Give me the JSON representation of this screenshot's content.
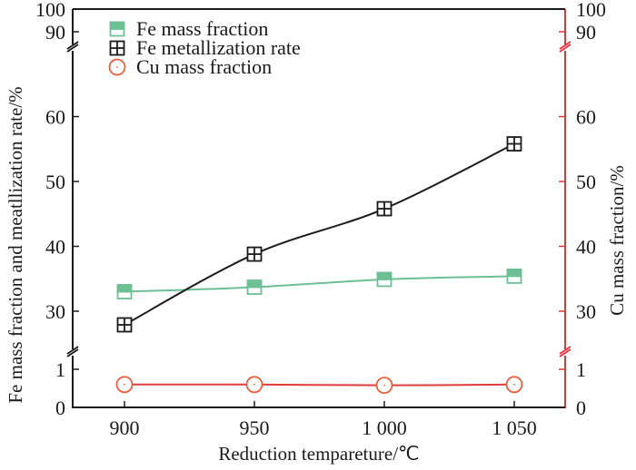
{
  "chart_data": {
    "type": "line",
    "title": "",
    "xlabel": "Reduction tempareture/℃",
    "ylabel_left": "Fe mass fraction and meatllization rate/%",
    "ylabel_right": "Cu mass fraction/%",
    "x": [
      900,
      950,
      1000,
      1050
    ],
    "x_tick_labels": [
      "900",
      "950",
      "1 000",
      "1 050"
    ],
    "y_left_ticks": [
      "0",
      "1",
      "30",
      "40",
      "50",
      "60",
      "90",
      "100"
    ],
    "y_right_ticks": [
      "0",
      "1",
      "30",
      "40",
      "50",
      "60",
      "90",
      "100"
    ],
    "y_axis_broken": true,
    "y_segments": [
      [
        0,
        1.5
      ],
      [
        25,
        65
      ],
      [
        85,
        100
      ]
    ],
    "grid": false,
    "legend_position": "top-left",
    "series": [
      {
        "name": "Fe mass fraction",
        "axis": "left",
        "marker": "half-filled-square",
        "color": "#6dbf94",
        "values": [
          33.0,
          33.7,
          34.9,
          35.4
        ]
      },
      {
        "name": "Fe metallization rate",
        "axis": "left",
        "marker": "crossed-square",
        "color": "#1a1a1a",
        "values": [
          27.9,
          38.8,
          45.8,
          55.8
        ]
      },
      {
        "name": "Cu mass fraction",
        "axis": "right",
        "marker": "dotted-circle",
        "color": "#e8603c",
        "values": [
          0.6,
          0.6,
          0.58,
          0.6
        ]
      }
    ],
    "colors": {
      "left_axis": "#1a1a1a",
      "right_axis": "#e8303a",
      "cu_line": "#e23b3b"
    }
  }
}
